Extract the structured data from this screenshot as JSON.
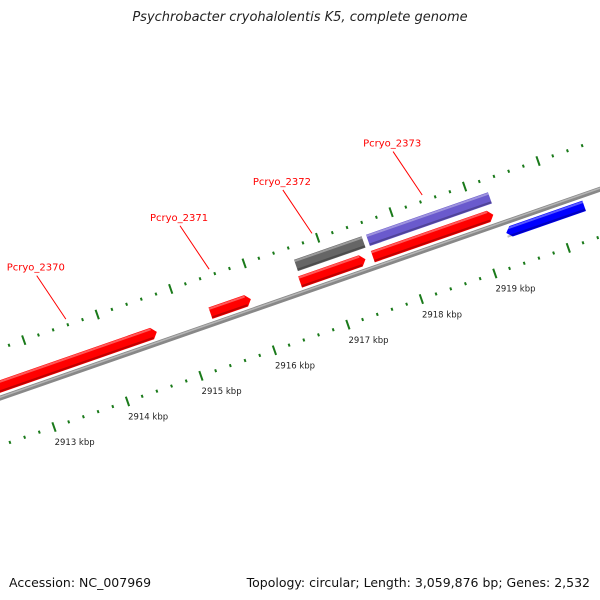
{
  "title": "Psychrobacter cryohalolentis K5, complete genome",
  "footer": {
    "accession": "Accession: NC_007969",
    "summary": "Topology: circular; Length: 3,059,876 bp; Genes: 2,532"
  },
  "axis": {
    "start_kbp": 2912.2,
    "end_kbp": 2920.6,
    "major_ticks": [
      {
        "kbp": 2913,
        "label": "2913 kbp"
      },
      {
        "kbp": 2914,
        "label": "2914 kbp"
      },
      {
        "kbp": 2915,
        "label": "2915 kbp"
      },
      {
        "kbp": 2916,
        "label": "2916 kbp"
      },
      {
        "kbp": 2917,
        "label": "2917 kbp"
      },
      {
        "kbp": 2918,
        "label": "2918 kbp"
      },
      {
        "kbp": 2919,
        "label": "2919 kbp"
      }
    ],
    "minor_step_kbp": 0.2
  },
  "colors": {
    "cds": "#ff0000",
    "gene_gray": "#666666",
    "gene_purple": "#6a5acd",
    "reverse": "#0000ff",
    "tick": "#1a7a1a",
    "backbone": "#888888",
    "label": "#ff0000"
  },
  "features": [
    {
      "id": "cds-2370",
      "start": 2911.4,
      "end": 2914.65,
      "lane": "fwd",
      "color": "#ff0000",
      "arrow": "right"
    },
    {
      "id": "cds-2371",
      "start": 2915.38,
      "end": 2915.93,
      "lane": "fwd",
      "color": "#ff0000",
      "arrow": "right"
    },
    {
      "id": "gene-2372",
      "start": 2916.62,
      "end": 2917.54,
      "lane": "upper",
      "color": "#666666",
      "arrow": "none"
    },
    {
      "id": "cds-2372",
      "start": 2916.6,
      "end": 2917.49,
      "lane": "fwd",
      "color": "#ff0000",
      "arrow": "right"
    },
    {
      "id": "gene-2373",
      "start": 2917.6,
      "end": 2919.26,
      "lane": "upper",
      "color": "#6a5acd",
      "arrow": "none"
    },
    {
      "id": "cds-2373",
      "start": 2917.59,
      "end": 2919.23,
      "lane": "fwd",
      "color": "#ff0000",
      "arrow": "right"
    },
    {
      "id": "rev-gene",
      "start": 2919.31,
      "end": 2920.37,
      "lane": "rev",
      "color": "#0000ff",
      "arrow": "left"
    }
  ],
  "labels": [
    {
      "text": "Pcryo_2370",
      "kbp": 2913.6
    },
    {
      "text": "Pcryo_2371",
      "kbp": 2915.55
    },
    {
      "text": "Pcryo_2372",
      "kbp": 2916.95
    },
    {
      "text": "Pcryo_2373",
      "kbp": 2918.45
    }
  ]
}
